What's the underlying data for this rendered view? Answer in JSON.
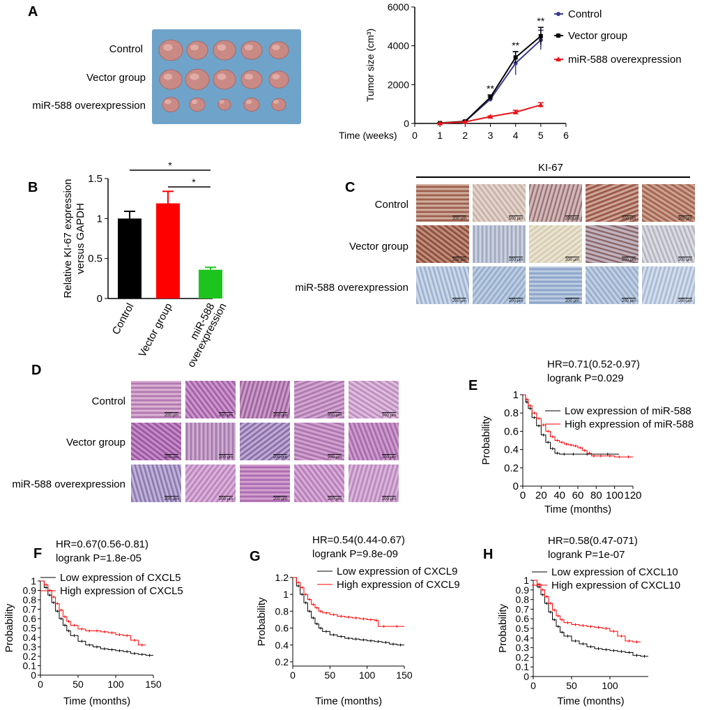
{
  "panels": {
    "A": "A",
    "B": "B",
    "C": "C",
    "D": "D",
    "E": "E",
    "F": "F",
    "G": "G",
    "H": "H"
  },
  "groups": [
    "Control",
    "Vector group",
    "miR-588 overexpression"
  ],
  "colors": {
    "control": "#3b3b8f",
    "vector": "#000000",
    "mir": "#e8161b",
    "bar_control": "#000000",
    "bar_vector": "#ff0000",
    "bar_mir": "#1ec41e",
    "km_low": "#000000",
    "km_high": "#ff0000"
  },
  "photo": {
    "rows": [
      "Control",
      "Vector group",
      "miR-588 overexpression"
    ]
  },
  "ki67_header": "KI-67",
  "scale_labels": {
    "C": [
      [
        "200 μm",
        "500 μm",
        "200 μm",
        "200 μm",
        "200 μm"
      ],
      [
        "200 μm",
        "200 μm",
        "200 μm",
        "200 μm",
        "200 μm"
      ],
      [
        "200 μm",
        "200 μm",
        "200 μm",
        "200 μm",
        "200 μm"
      ]
    ],
    "D": [
      [
        "200 μm",
        "200 μm",
        "200 μm",
        "200 μm",
        "200 μm"
      ],
      [
        "200 μm",
        "200 μm",
        "200 μm",
        "200 μm",
        "200 μm"
      ],
      [
        "200 μm",
        "200 μm",
        "200 μm",
        "200 μm",
        "200 μm"
      ]
    ]
  },
  "chart_data": [
    {
      "id": "A",
      "type": "line",
      "xlabel": "Time (weeks)",
      "ylabel": "Tumor size (cm³)",
      "xticks": [
        0,
        1,
        2,
        3,
        4,
        5,
        6
      ],
      "yticks": [
        0,
        2000,
        4000,
        6000
      ],
      "xlim": [
        0,
        6
      ],
      "ylim": [
        0,
        6000
      ],
      "legend": "right",
      "series": [
        {
          "name": "Control",
          "x": [
            1,
            2,
            3,
            4,
            5
          ],
          "y": [
            20,
            100,
            1250,
            3100,
            4300
          ],
          "err": [
            20,
            40,
            120,
            600,
            500
          ],
          "color": "#3b3b8f",
          "marker": "circle"
        },
        {
          "name": "Vector group",
          "x": [
            1,
            2,
            3,
            4,
            5
          ],
          "y": [
            20,
            110,
            1350,
            3400,
            4500
          ],
          "err": [
            20,
            40,
            120,
            300,
            450
          ],
          "color": "#000000",
          "marker": "square"
        },
        {
          "name": "miR-588 overexpression",
          "x": [
            1,
            2,
            3,
            4,
            5
          ],
          "y": [
            10,
            80,
            350,
            580,
            950
          ],
          "err": [
            10,
            20,
            40,
            100,
            120
          ],
          "color": "#e8161b",
          "marker": "triangle"
        }
      ],
      "annotations": [
        {
          "x": 3,
          "text": "**"
        },
        {
          "x": 4,
          "text": "**"
        },
        {
          "x": 5,
          "text": "**"
        }
      ]
    },
    {
      "id": "B",
      "type": "bar",
      "ylabel_lines": [
        "Relative KI-67 expression",
        "versus GAPDH"
      ],
      "categories": [
        "Control",
        "Vector group",
        "miR-588 overexpression"
      ],
      "category_lines": [
        [
          "Control"
        ],
        [
          "Vector group"
        ],
        [
          "miR-588",
          "overexpression"
        ]
      ],
      "values": [
        1.0,
        1.19,
        0.36
      ],
      "errors": [
        0.09,
        0.15,
        0.03
      ],
      "colors": [
        "#000000",
        "#ff0000",
        "#1ec41e"
      ],
      "yticks": [
        0,
        0.5,
        1,
        1.5
      ],
      "ylim": [
        0,
        1.5
      ],
      "significance": [
        {
          "from": 0,
          "to": 2,
          "text": "*"
        },
        {
          "from": 1,
          "to": 2,
          "text": "*"
        }
      ]
    },
    {
      "id": "E",
      "type": "line",
      "stat_lines": [
        "HR=0.71(0.52-0.97)",
        "logrank P=0.029"
      ],
      "xlabel": "Time (months)",
      "ylabel": "Probability",
      "xticks": [
        0,
        20,
        40,
        60,
        80,
        100,
        120
      ],
      "yticks": [
        0,
        0.2,
        0.4,
        0.6,
        0.8,
        1
      ],
      "xlim": [
        0,
        120
      ],
      "ylim": [
        0,
        1.0
      ],
      "series": [
        {
          "name": "Low expression of miR-588",
          "color": "#000000",
          "x": [
            0,
            3,
            6,
            10,
            15,
            20,
            25,
            30,
            35,
            40,
            50,
            60,
            80,
            105
          ],
          "y": [
            1.0,
            0.92,
            0.85,
            0.75,
            0.66,
            0.56,
            0.48,
            0.41,
            0.36,
            0.35,
            0.35,
            0.35,
            0.35,
            0.35
          ]
        },
        {
          "name": "High expression of miR-588",
          "color": "#ff0000",
          "x": [
            0,
            3,
            6,
            10,
            15,
            20,
            25,
            30,
            35,
            40,
            45,
            50,
            55,
            60,
            65,
            70,
            75,
            80,
            90,
            100,
            110,
            120
          ],
          "y": [
            1.0,
            0.95,
            0.88,
            0.8,
            0.74,
            0.67,
            0.6,
            0.54,
            0.5,
            0.48,
            0.46,
            0.45,
            0.44,
            0.42,
            0.39,
            0.36,
            0.33,
            0.33,
            0.33,
            0.32,
            0.32,
            0.32
          ]
        }
      ]
    },
    {
      "id": "F",
      "type": "line",
      "stat_lines": [
        "HR=0.67(0.56-0.81)",
        "logrank P=1.8e-05"
      ],
      "xlabel": "Time (months)",
      "ylabel": "Probability",
      "xticks": [
        0,
        50,
        100,
        150
      ],
      "yticks": [
        0,
        0.1,
        0.2,
        0.3,
        0.4,
        0.5,
        0.6,
        0.7,
        0.8,
        0.9,
        1
      ],
      "xlim": [
        0,
        150
      ],
      "ylim": [
        0,
        1.0
      ],
      "series": [
        {
          "name": "Low expression of CXCL5",
          "color": "#000000",
          "x": [
            0,
            5,
            10,
            15,
            20,
            25,
            30,
            35,
            40,
            50,
            60,
            70,
            80,
            90,
            100,
            110,
            120,
            130,
            140,
            150
          ],
          "y": [
            1.0,
            0.93,
            0.85,
            0.77,
            0.68,
            0.6,
            0.53,
            0.47,
            0.42,
            0.36,
            0.32,
            0.3,
            0.28,
            0.27,
            0.26,
            0.25,
            0.23,
            0.22,
            0.21,
            0.21
          ]
        },
        {
          "name": "High expression of CXCL5",
          "color": "#ff0000",
          "x": [
            0,
            5,
            10,
            15,
            20,
            25,
            30,
            35,
            40,
            50,
            60,
            70,
            80,
            90,
            100,
            110,
            120,
            130,
            140
          ],
          "y": [
            1.0,
            0.96,
            0.9,
            0.83,
            0.76,
            0.69,
            0.62,
            0.57,
            0.53,
            0.49,
            0.47,
            0.47,
            0.46,
            0.45,
            0.43,
            0.42,
            0.37,
            0.32,
            0.32
          ]
        }
      ]
    },
    {
      "id": "G",
      "type": "line",
      "stat_lines": [
        "HR=0.54(0.44-0.67)",
        "logrank P=9.8e-09"
      ],
      "xlabel": "Time (months)",
      "ylabel": "Probability",
      "xticks": [
        0,
        50,
        100,
        150
      ],
      "yticks": [
        0.2,
        0.4,
        0.6,
        0.8,
        1.0,
        1.2
      ],
      "xlim": [
        0,
        150
      ],
      "ylim": [
        0.15,
        1.2
      ],
      "series": [
        {
          "name": "Low expression of CXCL9",
          "color": "#000000",
          "x": [
            0,
            5,
            10,
            15,
            20,
            25,
            30,
            35,
            40,
            50,
            60,
            70,
            80,
            90,
            100,
            110,
            120,
            130,
            140,
            150
          ],
          "y": [
            1.2,
            1.1,
            1.0,
            0.9,
            0.8,
            0.72,
            0.65,
            0.6,
            0.56,
            0.52,
            0.5,
            0.48,
            0.47,
            0.46,
            0.45,
            0.44,
            0.43,
            0.41,
            0.4,
            0.4
          ]
        },
        {
          "name": "High expression of CXCL9",
          "color": "#ff0000",
          "x": [
            0,
            5,
            10,
            15,
            20,
            25,
            30,
            35,
            40,
            50,
            60,
            70,
            80,
            90,
            100,
            110,
            115,
            130,
            150
          ],
          "y": [
            1.2,
            1.14,
            1.08,
            1.0,
            0.94,
            0.88,
            0.84,
            0.8,
            0.78,
            0.76,
            0.74,
            0.73,
            0.72,
            0.71,
            0.7,
            0.69,
            0.62,
            0.62,
            0.62
          ]
        }
      ]
    },
    {
      "id": "H",
      "type": "line",
      "stat_lines": [
        "HR=0.58(0.47-071)",
        "logrank P=1e-07"
      ],
      "xlabel": "Time (months)",
      "ylabel": "Probability",
      "xticks": [
        0,
        50,
        100
      ],
      "yticks": [
        0,
        0.1,
        0.2,
        0.3,
        0.4,
        0.5,
        0.6,
        0.7,
        0.8,
        0.9,
        1
      ],
      "xlim": [
        0,
        150
      ],
      "ylim": [
        0,
        1.0
      ],
      "series": [
        {
          "name": "Low expression of CXCL10",
          "color": "#000000",
          "x": [
            0,
            5,
            10,
            15,
            20,
            25,
            30,
            35,
            40,
            50,
            60,
            70,
            80,
            90,
            100,
            110,
            120,
            130,
            140,
            150
          ],
          "y": [
            1.0,
            0.93,
            0.85,
            0.76,
            0.67,
            0.59,
            0.52,
            0.46,
            0.42,
            0.37,
            0.34,
            0.31,
            0.29,
            0.28,
            0.27,
            0.26,
            0.25,
            0.22,
            0.21,
            0.21
          ]
        },
        {
          "name": "High expression of CXCL10",
          "color": "#ff0000",
          "x": [
            0,
            5,
            10,
            15,
            20,
            25,
            30,
            35,
            40,
            50,
            60,
            70,
            80,
            90,
            100,
            110,
            120,
            130,
            140
          ],
          "y": [
            1.0,
            0.96,
            0.9,
            0.83,
            0.76,
            0.69,
            0.63,
            0.59,
            0.56,
            0.54,
            0.53,
            0.52,
            0.51,
            0.5,
            0.47,
            0.42,
            0.37,
            0.36,
            0.36
          ]
        }
      ]
    }
  ]
}
